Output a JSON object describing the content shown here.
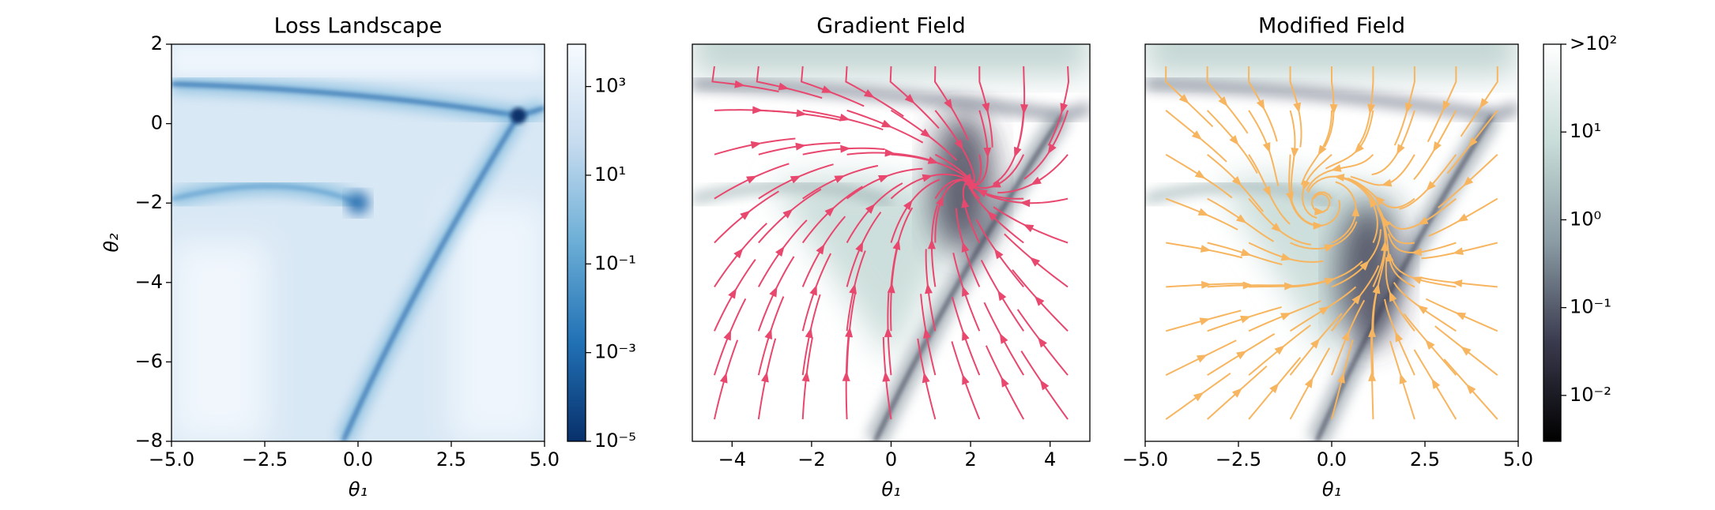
{
  "chart_data": [
    {
      "type": "heatmap",
      "title": "Loss Landscape",
      "xlabel": "θ₁",
      "ylabel": "θ₂",
      "xlim": [
        -5,
        5
      ],
      "ylim": [
        -8,
        2
      ],
      "xticks": [
        {
          "value": -5,
          "label": "−5.0"
        },
        {
          "value": -2.5,
          "label": "−2.5"
        },
        {
          "value": 0,
          "label": "0.0"
        },
        2.5,
        {
          "value": 5,
          "label": "5.0"
        }
      ],
      "yticks": [
        2,
        0,
        {
          "value": -2,
          "label": "−2"
        },
        {
          "value": -4,
          "label": "−4"
        },
        {
          "value": -6,
          "label": "−6"
        },
        {
          "value": -8,
          "label": "−8"
        }
      ],
      "colorbar": {
        "log": true,
        "clim": [
          1e-05,
          9000
        ],
        "colors": [
          "#08306b",
          "#2171b5",
          "#6baed6",
          "#c6dbef",
          "#f7fbff"
        ],
        "ticks": [
          {
            "value": 1000,
            "label": "10³"
          },
          {
            "value": 10,
            "label": "10¹"
          },
          {
            "value": 0.1,
            "label": "10⁻¹"
          },
          {
            "value": 0.001,
            "label": "10⁻³"
          },
          {
            "value": 1e-05,
            "label": "10⁻⁵"
          }
        ]
      }
    },
    {
      "type": "streamplot",
      "title": "Gradient Field",
      "xlabel": "θ₁",
      "xlim": [
        -5,
        5
      ],
      "ylim": [
        -8,
        2
      ],
      "stream_color": "#e8476e",
      "xticks": [
        {
          "value": -4,
          "label": "−4"
        },
        {
          "value": -2,
          "label": "−2"
        },
        0,
        2,
        4
      ]
    },
    {
      "type": "streamplot",
      "title": "Modified Field",
      "xlabel": "θ₁",
      "xlim": [
        -5,
        5
      ],
      "ylim": [
        -8,
        2
      ],
      "stream_color": "#f7b55f",
      "xticks": [
        {
          "value": -5,
          "label": "−5.0"
        },
        {
          "value": -2.5,
          "label": "−2.5"
        },
        {
          "value": 0,
          "label": "0.0"
        },
        2.5,
        {
          "value": 5,
          "label": "5.0"
        }
      ],
      "colorbar": {
        "log": true,
        "clim": [
          0.003,
          100
        ],
        "colors": [
          "#000000",
          "#3a3a4e",
          "#8a9ba4",
          "#c7dcd8",
          "#ffffff"
        ],
        "ticks": [
          {
            "value": 100,
            "label": ">10²"
          },
          {
            "value": 10,
            "label": "10¹"
          },
          {
            "value": 1,
            "label": "10⁰"
          },
          {
            "value": 0.1,
            "label": "10⁻¹"
          },
          {
            "value": 0.01,
            "label": "10⁻²"
          }
        ]
      }
    }
  ]
}
